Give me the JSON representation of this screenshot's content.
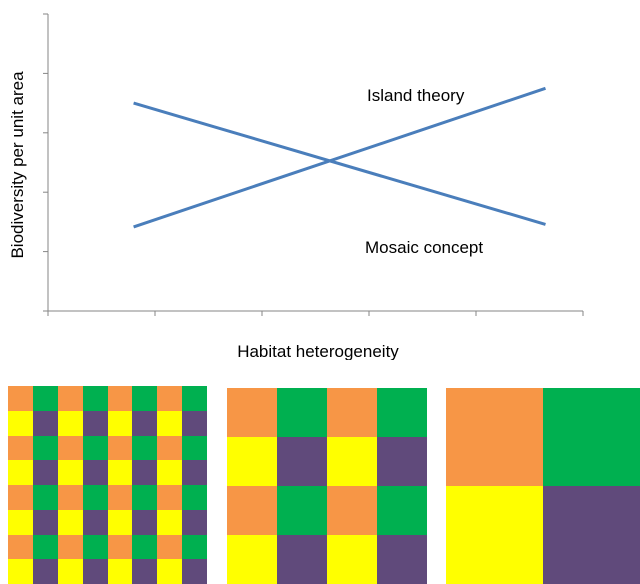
{
  "colors": {
    "line": "#4a7ebb",
    "axis": "#868686",
    "orange": "#f79646",
    "green": "#00b050",
    "yellow": "#ffff00",
    "purple": "#604a7b"
  },
  "chart_data": {
    "type": "line",
    "title": "",
    "xlabel": "Habitat heterogeneity",
    "ylabel": "Biodiversity per unit area",
    "x_ticks": 6,
    "y_ticks": 6,
    "xlim": [
      0,
      5
    ],
    "ylim": [
      0,
      6
    ],
    "grid": false,
    "series": [
      {
        "name": "Island theory",
        "x": [
          0.8,
          4.65
        ],
        "y": [
          1.7,
          4.5
        ]
      },
      {
        "name": "Mosaic concept",
        "x": [
          0.8,
          4.65
        ],
        "y": [
          4.2,
          1.75
        ]
      }
    ]
  },
  "mosaics": [
    {
      "size": 8,
      "pattern": [
        [
          "orange",
          "green"
        ],
        [
          "yellow",
          "purple"
        ]
      ]
    },
    {
      "size": 4,
      "pattern": [
        [
          "orange",
          "green"
        ],
        [
          "yellow",
          "purple"
        ]
      ]
    },
    {
      "size": 2,
      "pattern": [
        [
          "orange",
          "green"
        ],
        [
          "yellow",
          "purple"
        ]
      ]
    }
  ]
}
